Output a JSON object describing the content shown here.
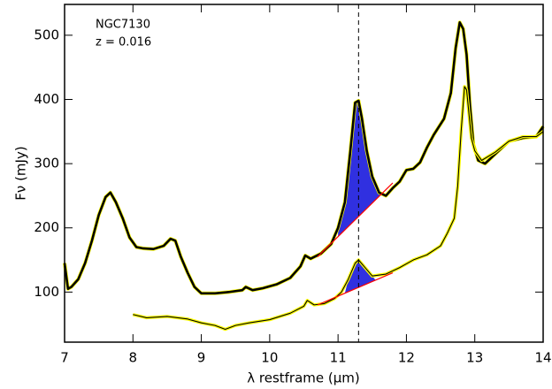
{
  "chart_data": {
    "type": "line",
    "annotations": [
      "NGC7130",
      "z = 0.016"
    ],
    "xlabel": "λ restframe (μm)",
    "ylabel": "Fν (mJy)",
    "xlim": [
      7,
      14
    ],
    "ylim": [
      22,
      548
    ],
    "xticks": [
      7,
      8,
      9,
      10,
      11,
      12,
      13,
      14
    ],
    "yticks": [
      100,
      200,
      300,
      400,
      500
    ],
    "vline": 11.3,
    "series": [
      {
        "color": "#000000",
        "halo_color": "#ffff00",
        "x": [
          7.0,
          7.05,
          7.1,
          7.2,
          7.3,
          7.4,
          7.5,
          7.6,
          7.67,
          7.75,
          7.85,
          7.95,
          8.05,
          8.15,
          8.3,
          8.45,
          8.55,
          8.62,
          8.7,
          8.8,
          8.9,
          9.0,
          9.2,
          9.4,
          9.6,
          9.65,
          9.75,
          9.9,
          10.1,
          10.3,
          10.45,
          10.52,
          10.6,
          10.75,
          10.9,
          11.0,
          11.1,
          11.18,
          11.25,
          11.3,
          11.35,
          11.42,
          11.5,
          11.6,
          11.7,
          11.8,
          11.9,
          12.0,
          12.1,
          12.2,
          12.3,
          12.4,
          12.55,
          12.65,
          12.72,
          12.78,
          12.83,
          12.88,
          12.93,
          12.98,
          13.05,
          13.15,
          13.3,
          13.5,
          13.7,
          13.9,
          14.0
        ],
        "values": [
          145,
          105,
          108,
          120,
          145,
          180,
          220,
          248,
          255,
          240,
          215,
          185,
          170,
          168,
          167,
          172,
          183,
          180,
          155,
          130,
          108,
          98,
          98,
          100,
          103,
          108,
          103,
          106,
          112,
          122,
          140,
          157,
          152,
          160,
          175,
          200,
          240,
          320,
          395,
          398,
          370,
          320,
          280,
          255,
          250,
          262,
          272,
          290,
          292,
          302,
          325,
          345,
          370,
          410,
          480,
          520,
          510,
          470,
          390,
          330,
          305,
          300,
          315,
          335,
          340,
          342,
          358
        ]
      },
      {
        "color": "#000000",
        "halo_color": "#ffff00",
        "x": [
          8.0,
          8.2,
          8.5,
          8.8,
          9.0,
          9.2,
          9.35,
          9.5,
          9.7,
          10.0,
          10.3,
          10.5,
          10.55,
          10.65,
          10.8,
          10.95,
          11.05,
          11.15,
          11.25,
          11.3,
          11.38,
          11.5,
          11.7,
          11.9,
          12.1,
          12.3,
          12.5,
          12.6,
          12.7,
          12.75,
          12.8,
          12.85,
          12.88,
          12.95,
          13.0,
          13.1,
          13.3,
          13.5,
          13.7,
          13.9,
          14.0
        ],
        "values": [
          65,
          60,
          62,
          58,
          52,
          48,
          42,
          48,
          52,
          57,
          67,
          78,
          87,
          80,
          82,
          90,
          100,
          120,
          145,
          150,
          140,
          125,
          128,
          138,
          150,
          158,
          172,
          192,
          215,
          265,
          350,
          420,
          415,
          340,
          320,
          305,
          318,
          335,
          342,
          342,
          350
        ]
      }
    ],
    "continua": [
      {
        "color": "#ff0000",
        "fill": "#3030e0",
        "x": [
          10.7,
          11.8
        ],
        "values": [
          155,
          270
        ],
        "fill_xlim": [
          11.0,
          11.65
        ],
        "series": 0
      },
      {
        "color": "#ff0000",
        "fill": "#3030e0",
        "x": [
          10.7,
          11.8
        ],
        "values": [
          80,
          130
        ],
        "fill_xlim": [
          11.1,
          11.55
        ],
        "series": 1
      }
    ]
  }
}
